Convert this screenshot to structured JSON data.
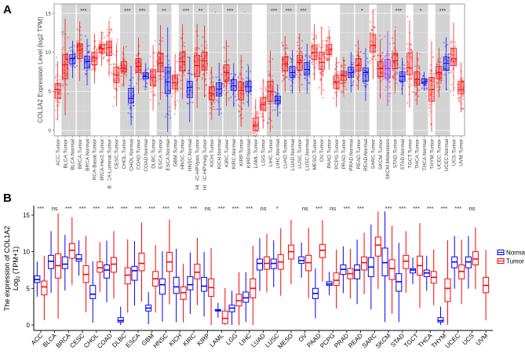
{
  "panel_labels": {
    "a": "A",
    "b": "B"
  },
  "colors": {
    "tumor": "#ff0000",
    "normal": "#0000ff",
    "metastasis": "#a020f0",
    "shade": "#d3d3d3"
  },
  "chart_data": [
    {
      "type": "box",
      "panel": "A",
      "ylabel": "COL1A2 Expression Level (log2 TPM)",
      "ylim": [
        -0.6,
        16
      ],
      "yticks": [
        0,
        5,
        10,
        15
      ],
      "grid": true,
      "note": "boxes given as [q1, median, q3]; jittered sample points overlaid",
      "categories": [
        {
          "label": "ACC.Tumor",
          "kind": "tumor",
          "box": [
            4.1,
            5.2,
            6.0
          ]
        },
        {
          "label": "BLCA.Tumor",
          "kind": "tumor",
          "box": [
            6.6,
            8.4,
            9.7
          ],
          "shade": true
        },
        {
          "label": "BLCA.Normal",
          "kind": "normal",
          "box": [
            8.5,
            9.2,
            9.7
          ],
          "shade": true
        },
        {
          "label": "BRCA.Tumor",
          "kind": "tumor",
          "box": [
            9.2,
            10.3,
            11.1
          ],
          "shade": true,
          "sig": "***"
        },
        {
          "label": "BRCA.Normal",
          "kind": "normal",
          "box": [
            8.0,
            8.8,
            9.5
          ],
          "shade": true
        },
        {
          "label": "BRCA-Basal.Tumor",
          "kind": "tumor",
          "box": [
            8.4,
            9.3,
            10.0
          ]
        },
        {
          "label": "BRCA-Her2.Tumor",
          "kind": "tumor",
          "box": [
            9.9,
            10.5,
            11.0
          ]
        },
        {
          "label": "BRCA-Luminal.Tumor",
          "kind": "tumor",
          "box": [
            9.6,
            10.6,
            11.4
          ]
        },
        {
          "label": "CESC.Tumor",
          "kind": "tumor",
          "box": [
            6.1,
            7.1,
            8.1
          ]
        },
        {
          "label": "CHOL.Tumor",
          "kind": "tumor",
          "box": [
            7.5,
            8.0,
            8.8
          ],
          "shade": true,
          "sig": "***"
        },
        {
          "label": "CHOL.Normal",
          "kind": "normal",
          "box": [
            3.5,
            4.1,
            5.4
          ],
          "shade": true
        },
        {
          "label": "COAD.Tumor",
          "kind": "tumor",
          "box": [
            7.4,
            8.2,
            9.2
          ],
          "shade": true,
          "sig": "***"
        },
        {
          "label": "COAD.Normal",
          "kind": "normal",
          "box": [
            6.6,
            6.9,
            7.4
          ],
          "shade": true
        },
        {
          "label": "DLBC.Tumor",
          "kind": "tumor",
          "box": [
            5.7,
            6.8,
            7.8
          ]
        },
        {
          "label": "ESCA.Tumor",
          "kind": "tumor",
          "box": [
            7.5,
            8.6,
            9.9
          ],
          "shade": true,
          "sig": "**"
        },
        {
          "label": "ESCA.Normal",
          "kind": "normal",
          "box": [
            4.7,
            6.2,
            8.1
          ],
          "shade": true
        },
        {
          "label": "GBM.Tumor",
          "kind": "tumor",
          "box": [
            5.3,
            6.1,
            7.1
          ]
        },
        {
          "label": "HNSC.Tumor",
          "kind": "tumor",
          "box": [
            7.6,
            8.8,
            10.0
          ],
          "shade": true,
          "sig": "***"
        },
        {
          "label": "HNSC.Normal",
          "kind": "normal",
          "box": [
            4.2,
            5.5,
            6.3
          ],
          "shade": true
        },
        {
          "label": "HNSC-HPVpos.Tumor",
          "kind": "tumor",
          "box": [
            6.9,
            8.3,
            9.6
          ],
          "shade": true,
          "sig": "**"
        },
        {
          "label": "HNSC-HPVneg.Tumor",
          "kind": "tumor",
          "box": [
            7.7,
            8.9,
            10.0
          ],
          "shade": true
        },
        {
          "label": "KICH.Tumor",
          "kind": "tumor",
          "box": [
            3.9,
            4.7,
            5.6
          ],
          "shade": true,
          "sig": "."
        },
        {
          "label": "KICH.Normal",
          "kind": "normal",
          "box": [
            4.4,
            5.3,
            6.1
          ],
          "shade": true
        },
        {
          "label": "KIRC.Tumor",
          "kind": "tumor",
          "box": [
            6.3,
            7.4,
            8.4
          ],
          "shade": true,
          "sig": "***"
        },
        {
          "label": "KIRC.Normal",
          "kind": "normal",
          "box": [
            5.1,
            5.7,
            6.5
          ],
          "shade": true
        },
        {
          "label": "KIRP.Tumor",
          "kind": "tumor",
          "box": [
            3.9,
            5.1,
            6.2
          ],
          "shade": true,
          "sig": "."
        },
        {
          "label": "KIRP.Normal",
          "kind": "normal",
          "box": [
            5.0,
            5.6,
            6.3
          ],
          "shade": true
        },
        {
          "label": "LAML.Tumor",
          "kind": "tumor",
          "box": [
            0.0,
            0.6,
            1.6
          ]
        },
        {
          "label": "LGG.Tumor",
          "kind": "tumor",
          "box": [
            2.6,
            3.3,
            4.2
          ]
        },
        {
          "label": "LIHC.Tumor",
          "kind": "tumor",
          "box": [
            3.7,
            5.0,
            6.3
          ],
          "shade": true,
          "sig": "***"
        },
        {
          "label": "LIHC.Normal",
          "kind": "normal",
          "box": [
            3.4,
            3.8,
            4.4
          ],
          "shade": true
        },
        {
          "label": "LUAD.Tumor",
          "kind": "tumor",
          "box": [
            7.6,
            8.5,
            9.4
          ],
          "shade": true,
          "sig": "***"
        },
        {
          "label": "LUAD.Normal",
          "kind": "normal",
          "box": [
            6.8,
            7.4,
            8.2
          ],
          "shade": true
        },
        {
          "label": "LUSC.Tumor",
          "kind": "tumor",
          "box": [
            7.7,
            8.7,
            9.6
          ],
          "shade": true,
          "sig": "***"
        },
        {
          "label": "LUSC.Normal",
          "kind": "normal",
          "box": [
            7.1,
            7.8,
            8.7
          ],
          "shade": true
        },
        {
          "label": "MESO.Tumor",
          "kind": "tumor",
          "box": [
            9.1,
            10.0,
            10.9
          ]
        },
        {
          "label": "OV.Tumor",
          "kind": "tumor",
          "box": [
            7.8,
            8.7,
            10.0
          ]
        },
        {
          "label": "PAAD.Tumor",
          "kind": "tumor",
          "box": [
            9.7,
            10.3,
            11.0
          ]
        },
        {
          "label": "PCPG.Tumor",
          "kind": "tumor",
          "box": [
            5.4,
            6.2,
            7.0
          ]
        },
        {
          "label": "PRAD.Tumor",
          "kind": "tumor",
          "box": [
            6.4,
            7.0,
            7.6
          ],
          "shade": true
        },
        {
          "label": "PRAD.Normal",
          "kind": "normal",
          "box": [
            6.8,
            7.4,
            8.1
          ],
          "shade": true
        },
        {
          "label": "READ.Tumor",
          "kind": "tumor",
          "box": [
            7.6,
            8.3,
            9.2
          ],
          "shade": true,
          "sig": "*"
        },
        {
          "label": "READ.Normal",
          "kind": "normal",
          "box": [
            6.3,
            7.4,
            8.0
          ],
          "shade": true
        },
        {
          "label": "SARC.Tumor",
          "kind": "tumor",
          "box": [
            10.0,
            10.9,
            12.3
          ]
        },
        {
          "label": "SKCM.Tumor",
          "kind": "tumor",
          "box": [
            6.9,
            7.9,
            8.8
          ],
          "shade": true
        },
        {
          "label": "SKCM.Metastasis",
          "kind": "metastasis",
          "box": [
            6.7,
            7.9,
            9.1
          ],
          "shade": true
        },
        {
          "label": "STAD.Tumor",
          "kind": "tumor",
          "box": [
            7.9,
            8.9,
            9.9
          ],
          "shade": true,
          "sig": "***"
        },
        {
          "label": "STAD.Normal",
          "kind": "normal",
          "box": [
            6.3,
            6.9,
            7.5
          ],
          "shade": true
        },
        {
          "label": "TGCT.Tumor",
          "kind": "tumor",
          "box": [
            7.1,
            8.0,
            9.9
          ]
        },
        {
          "label": "THCA.Tumor",
          "kind": "tumor",
          "box": [
            5.8,
            6.5,
            7.5
          ],
          "shade": true,
          "sig": "*"
        },
        {
          "label": "THCA.Normal",
          "kind": "normal",
          "box": [
            6.0,
            6.2,
            6.6
          ],
          "shade": true
        },
        {
          "label": "THYM.Tumor",
          "kind": "tumor",
          "box": [
            3.7,
            5.2,
            6.8
          ]
        },
        {
          "label": "UCEC.Tumor",
          "kind": "tumor",
          "box": [
            6.6,
            7.4,
            8.2
          ],
          "shade": true,
          "sig": "***"
        },
        {
          "label": "UCEC.Normal",
          "kind": "normal",
          "box": [
            7.7,
            8.6,
            9.4
          ],
          "shade": true
        },
        {
          "label": "UCS.Tumor",
          "kind": "tumor",
          "box": [
            8.3,
            9.2,
            10.5
          ]
        },
        {
          "label": "UVM.Tumor",
          "kind": "tumor",
          "box": [
            4.7,
            5.2,
            6.3
          ]
        }
      ]
    },
    {
      "type": "box",
      "panel": "B",
      "ylabel_line1": "The expression of COL1A2",
      "ylabel_line2": "Log",
      "ylabel_sub": "2",
      "ylabel_tail": " (TPM+1)",
      "ylim": [
        -0.6,
        16
      ],
      "yticks": [
        0,
        5,
        10,
        15
      ],
      "legend": {
        "position": "right",
        "items": [
          {
            "name": "Normal",
            "kind": "normal"
          },
          {
            "name": "Tumor",
            "kind": "tumor"
          }
        ]
      },
      "note": "normal / tumor boxes as [q1, median, q3]",
      "categories": [
        {
          "label": "ACC",
          "sig": "***",
          "normal": [
            5.8,
            6.2,
            6.7
          ],
          "tumor": [
            4.1,
            5.2,
            6.0
          ]
        },
        {
          "label": "BLCA",
          "sig": "ns",
          "normal": [
            7.7,
            8.7,
            9.5
          ],
          "tumor": [
            6.4,
            8.1,
            9.7
          ]
        },
        {
          "label": "BRCA",
          "sig": "***",
          "normal": [
            7.7,
            8.3,
            9.3
          ],
          "tumor": [
            9.1,
            10.2,
            11.1
          ]
        },
        {
          "label": "CESC",
          "sig": "***",
          "normal": [
            8.7,
            9.0,
            9.6
          ],
          "tumor": [
            5.8,
            6.9,
            8.1
          ]
        },
        {
          "label": "CHOL",
          "sig": "***",
          "normal": [
            3.6,
            4.2,
            5.4
          ],
          "tumor": [
            7.2,
            7.8,
            8.6
          ]
        },
        {
          "label": "COAD",
          "sig": "***",
          "normal": [
            6.4,
            7.5,
            8.2
          ],
          "tumor": [
            7.2,
            8.3,
            9.2
          ]
        },
        {
          "label": "DLBC",
          "sig": "***",
          "normal": [
            0.4,
            0.6,
            1.0
          ],
          "tumor": [
            5.6,
            6.8,
            7.8
          ]
        },
        {
          "label": "ESCA",
          "sig": "***",
          "normal": [
            6.1,
            7.4,
            8.0
          ],
          "tumor": [
            7.4,
            8.4,
            9.8
          ]
        },
        {
          "label": "GBM",
          "sig": "***",
          "normal": [
            1.9,
            2.3,
            2.7
          ],
          "tumor": [
            5.3,
            6.3,
            7.3
          ]
        },
        {
          "label": "HNSC",
          "sig": "***",
          "normal": [
            4.2,
            5.5,
            6.3
          ],
          "tumor": [
            7.3,
            8.6,
            9.9
          ]
        },
        {
          "label": "KICH",
          "sig": "**",
          "normal": [
            4.3,
            5.2,
            6.5
          ],
          "tumor": [
            3.5,
            4.4,
            5.2
          ]
        },
        {
          "label": "KIRC",
          "sig": "***",
          "normal": [
            4.8,
            5.5,
            6.6
          ],
          "tumor": [
            6.3,
            7.2,
            8.3
          ]
        },
        {
          "label": "KIRP",
          "sig": "ns",
          "normal": [
            4.6,
            5.3,
            6.5
          ],
          "tumor": [
            3.9,
            5.1,
            6.3
          ]
        },
        {
          "label": "LAML",
          "sig": "***",
          "normal": [
            1.9,
            2.0,
            2.1
          ],
          "tumor": [
            0.2,
            0.9,
            1.9
          ]
        },
        {
          "label": "LGG",
          "sig": "***",
          "normal": [
            1.8,
            2.3,
            2.7
          ],
          "tumor": [
            2.6,
            3.3,
            4.2
          ]
        },
        {
          "label": "LIHC",
          "sig": "***",
          "normal": [
            3.1,
            3.7,
            4.5
          ],
          "tumor": [
            3.7,
            5.0,
            6.3
          ]
        },
        {
          "label": "LUAD",
          "sig": "ns",
          "normal": [
            7.5,
            8.4,
            9.0
          ],
          "tumor": [
            7.6,
            8.4,
            9.3
          ]
        },
        {
          "label": "LUSC",
          "sig": "*",
          "normal": [
            7.7,
            8.4,
            9.0
          ],
          "tumor": [
            7.6,
            8.6,
            9.6
          ]
        },
        {
          "label": "MESO",
          "sig": "",
          "tumor": [
            9.0,
            10.0,
            10.9
          ]
        },
        {
          "label": "OV",
          "sig": "ns",
          "normal": [
            8.4,
            8.8,
            9.3
          ],
          "tumor": [
            7.4,
            8.5,
            9.5
          ]
        },
        {
          "label": "PAAD",
          "sig": "***",
          "normal": [
            3.6,
            4.3,
            5.0
          ],
          "tumor": [
            9.2,
            10.2,
            11.0
          ]
        },
        {
          "label": "PCPG",
          "sig": "ns",
          "normal": [
            5.4,
            5.6,
            5.9
          ],
          "tumor": [
            5.4,
            6.1,
            7.1
          ]
        },
        {
          "label": "PRAD",
          "sig": "***",
          "normal": [
            6.9,
            7.6,
            8.2
          ],
          "tumor": [
            6.3,
            7.0,
            7.7
          ]
        },
        {
          "label": "READ",
          "sig": "***",
          "normal": [
            6.3,
            7.5,
            8.2
          ],
          "tumor": [
            7.5,
            8.5,
            9.3
          ]
        },
        {
          "label": "SARC",
          "sig": "",
          "normal": [
            6.6,
            7.9,
            9.2
          ],
          "tumor": [
            9.4,
            10.9,
            12.0
          ]
        },
        {
          "label": "SKCM",
          "sig": "***",
          "normal": [
            6.7,
            8.5,
            10.5
          ],
          "tumor": [
            6.2,
            7.7,
            8.9
          ]
        },
        {
          "label": "STAD",
          "sig": "***",
          "normal": [
            4.6,
            5.9,
            7.0
          ],
          "tumor": [
            7.7,
            8.7,
            9.5
          ]
        },
        {
          "label": "TGCT",
          "sig": "***",
          "normal": [
            7.1,
            7.5,
            7.7
          ],
          "tumor": [
            6.8,
            8.1,
            9.4
          ]
        },
        {
          "label": "THCA",
          "sig": "***",
          "normal": [
            6.6,
            7.1,
            7.5
          ],
          "tumor": [
            5.7,
            6.5,
            7.3
          ]
        },
        {
          "label": "THYM",
          "sig": "***",
          "normal": [
            0.4,
            0.6,
            1.0
          ],
          "tumor": [
            3.2,
            5.0,
            6.3
          ]
        },
        {
          "label": "UCEC",
          "sig": "***",
          "normal": [
            7.8,
            8.6,
            9.3
          ],
          "tumor": [
            6.3,
            7.3,
            8.2
          ]
        },
        {
          "label": "UCS",
          "sig": "ns",
          "normal": [
            7.8,
            8.6,
            9.3
          ],
          "tumor": [
            8.2,
            9.0,
            10.0
          ]
        },
        {
          "label": "UVM",
          "sig": "",
          "tumor": [
            4.4,
            5.4,
            6.5
          ]
        }
      ]
    }
  ]
}
